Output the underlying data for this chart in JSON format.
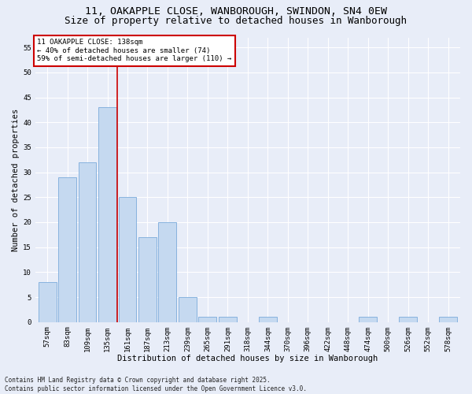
{
  "title_line1": "11, OAKAPPLE CLOSE, WANBOROUGH, SWINDON, SN4 0EW",
  "title_line2": "Size of property relative to detached houses in Wanborough",
  "xlabel": "Distribution of detached houses by size in Wanborough",
  "ylabel": "Number of detached properties",
  "categories": [
    "57sqm",
    "83sqm",
    "109sqm",
    "135sqm",
    "161sqm",
    "187sqm",
    "213sqm",
    "239sqm",
    "265sqm",
    "291sqm",
    "318sqm",
    "344sqm",
    "370sqm",
    "396sqm",
    "422sqm",
    "448sqm",
    "474sqm",
    "500sqm",
    "526sqm",
    "552sqm",
    "578sqm"
  ],
  "values": [
    8,
    29,
    32,
    43,
    25,
    17,
    20,
    5,
    1,
    1,
    0,
    1,
    0,
    0,
    0,
    0,
    1,
    0,
    1,
    0,
    1
  ],
  "bar_color": "#c5d9f0",
  "bar_edge_color": "#7aabdb",
  "background_color": "#e8edf8",
  "grid_color": "#ffffff",
  "vline_x": 3.5,
  "vline_color": "#cc0000",
  "annotation_text": "11 OAKAPPLE CLOSE: 138sqm\n← 40% of detached houses are smaller (74)\n59% of semi-detached houses are larger (110) →",
  "annotation_box_color": "#ffffff",
  "annotation_box_edge": "#cc0000",
  "ylim": [
    0,
    57
  ],
  "yticks": [
    0,
    5,
    10,
    15,
    20,
    25,
    30,
    35,
    40,
    45,
    50,
    55
  ],
  "footer_line1": "Contains HM Land Registry data © Crown copyright and database right 2025.",
  "footer_line2": "Contains public sector information licensed under the Open Government Licence v3.0.",
  "title_fontsize": 9.5,
  "title2_fontsize": 9,
  "axis_label_fontsize": 7.5,
  "tick_fontsize": 6.5,
  "annotation_fontsize": 6.5,
  "footer_fontsize": 5.5
}
